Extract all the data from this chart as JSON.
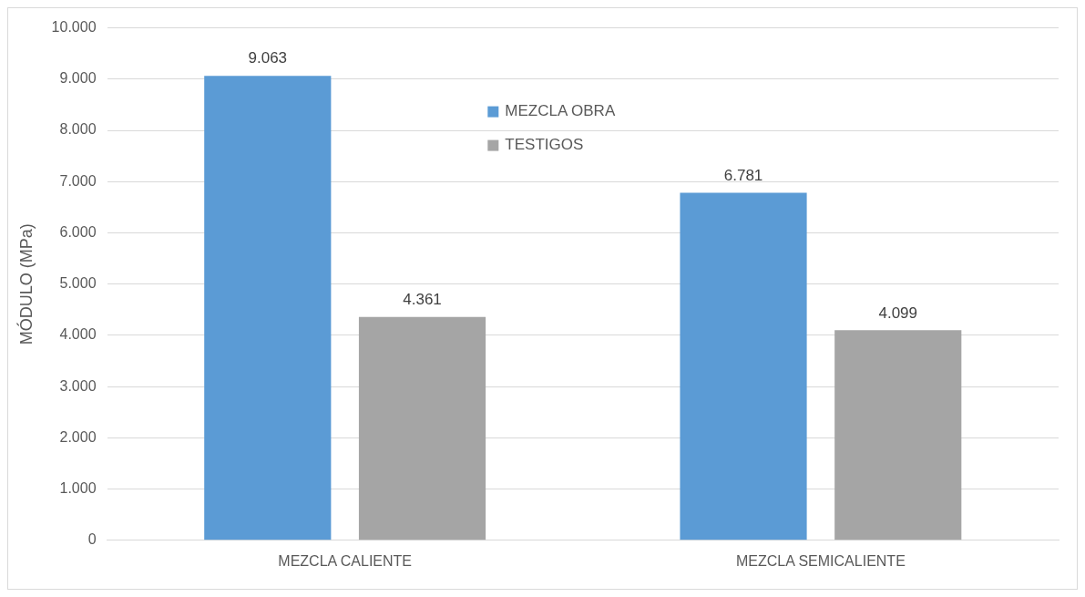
{
  "chart_data": {
    "type": "bar",
    "ylabel": "MÓDULO (MPa)",
    "categories": [
      "MEZCLA CALIENTE",
      "MEZCLA SEMICALIENTE"
    ],
    "series": [
      {
        "name": "MEZCLA OBRA",
        "color": "#5b9bd5",
        "values": [
          9063,
          6781
        ],
        "value_labels": [
          "9.063",
          "6.781"
        ]
      },
      {
        "name": "TESTIGOS",
        "color": "#a5a5a5",
        "values": [
          4361,
          4099
        ],
        "value_labels": [
          "4.361",
          "4.099"
        ]
      }
    ],
    "ylim": [
      0,
      10000
    ],
    "yticks": [
      {
        "value": 0,
        "label": "0"
      },
      {
        "value": 1000,
        "label": "1.000"
      },
      {
        "value": 2000,
        "label": "2.000"
      },
      {
        "value": 3000,
        "label": "3.000"
      },
      {
        "value": 4000,
        "label": "4.000"
      },
      {
        "value": 5000,
        "label": "5.000"
      },
      {
        "value": 6000,
        "label": "6.000"
      },
      {
        "value": 7000,
        "label": "7.000"
      },
      {
        "value": 8000,
        "label": "8.000"
      },
      {
        "value": 9000,
        "label": "9.000"
      },
      {
        "value": 10000,
        "label": "10.000"
      }
    ],
    "grid": "y",
    "legend": "top"
  }
}
